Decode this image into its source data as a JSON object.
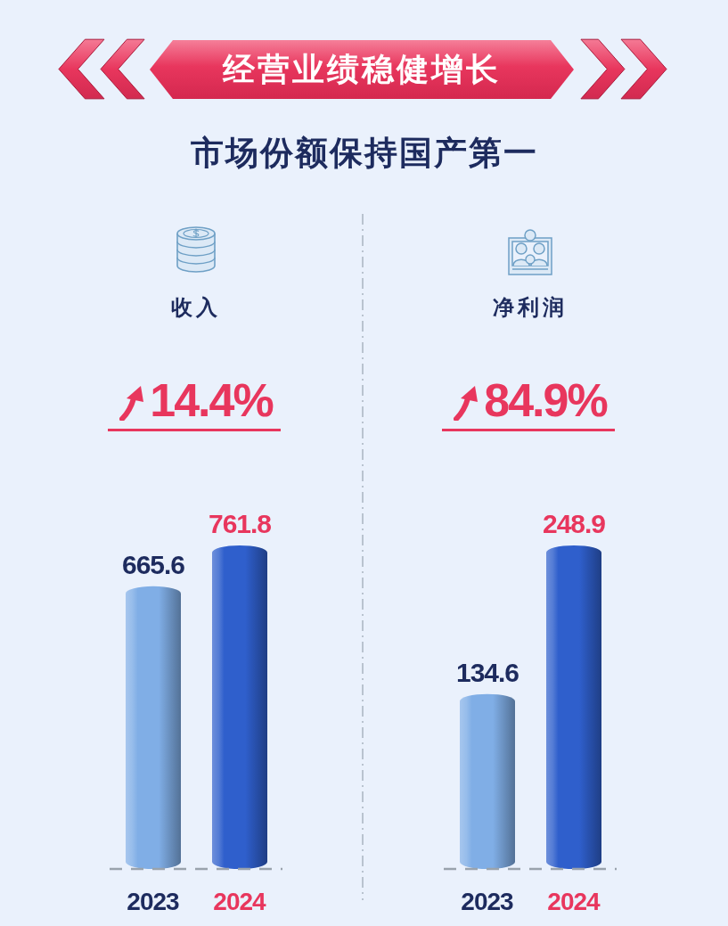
{
  "chart_data": [
    {
      "type": "other",
      "title": "经营业绩稳健增长",
      "subtitle": "市场份额保持国产第一"
    },
    {
      "type": "bar",
      "title": "收入",
      "subtitle": "14.4%",
      "categories": [
        "2023",
        "2024"
      ],
      "values": [
        665.6,
        761.8
      ],
      "colors": [
        "#80aee6",
        "#2f5fcc"
      ],
      "data_labels": true,
      "ref_lines": [
        {
          "axis": "y",
          "value": 0,
          "color": "#9aa3ad",
          "line_style": "dashed"
        }
      ]
    },
    {
      "type": "bar",
      "title": "净利润",
      "subtitle": "84.9%",
      "categories": [
        "2023",
        "2024"
      ],
      "values": [
        134.6,
        248.9
      ],
      "colors": [
        "#80aee6",
        "#2f5fcc"
      ],
      "data_labels": true,
      "ref_lines": [
        {
          "axis": "y",
          "value": 0,
          "color": "#9aa3ad",
          "line_style": "dashed"
        }
      ]
    }
  ]
}
